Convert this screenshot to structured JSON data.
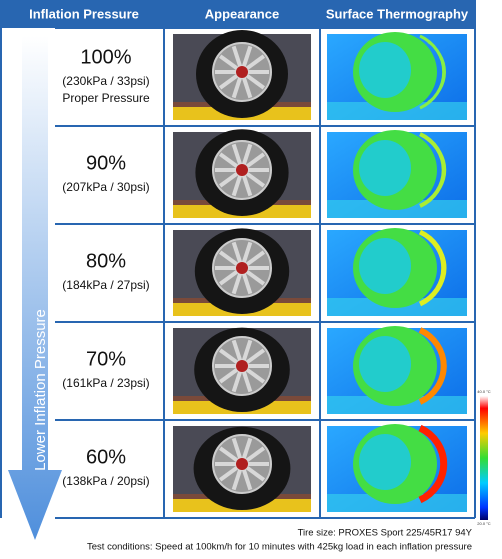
{
  "header": [
    "Inflation Pressure",
    "Appearance",
    "Surface Thermography"
  ],
  "rows": [
    {
      "percent": "100%",
      "details": [
        "(230kPa / 33psi)",
        "Proper Pressure"
      ]
    },
    {
      "percent": "90%",
      "details": [
        "(207kPa / 30psi)"
      ]
    },
    {
      "percent": "80%",
      "details": [
        "(184kPa / 27psi)"
      ]
    },
    {
      "percent": "70%",
      "details": [
        "(161kPa / 23psi)"
      ]
    },
    {
      "percent": "60%",
      "details": [
        "(138kPa / 20psi)"
      ]
    }
  ],
  "arrow_label": "Lower Inflation Pressure",
  "scale": {
    "max_label": "40.0 °C",
    "min_label": "20.0 °C"
  },
  "footer": [
    "Tire size: PROXES Sport 225/45R17 94Y",
    "Test conditions:  Speed at 100km/h for 10 minutes with 425kg load in each inflation pressure"
  ]
}
